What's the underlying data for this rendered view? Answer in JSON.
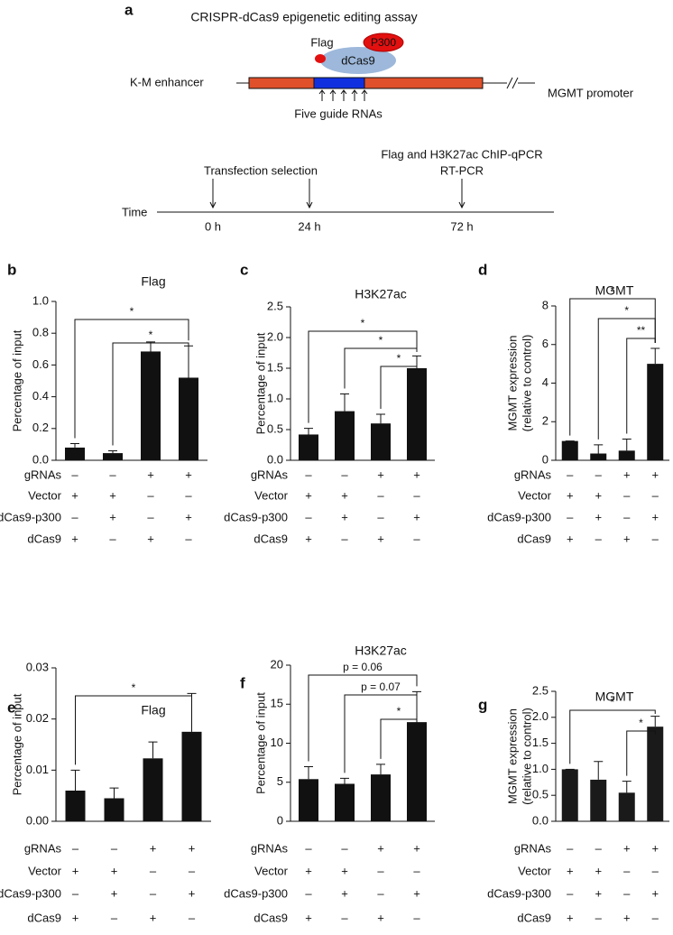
{
  "schematic": {
    "panel": "a",
    "title": "CRISPR-dCas9 epigenetic editing assay",
    "labels": {
      "flag": "Flag",
      "p300": "P300",
      "dcas9": "dCas9",
      "enhancer": "K-M enhancer",
      "promoter": "MGMT promoter",
      "guides": "Five guide RNAs"
    },
    "timeline": {
      "axis": "Time",
      "steps": [
        "Transfection selection",
        "Flag and H3K27ac ChIP-qPCR",
        "RT-PCR"
      ],
      "ticks": [
        "0 h",
        "24 h",
        "72 h"
      ]
    }
  },
  "chart_data": [
    {
      "panel": "b",
      "type": "bar",
      "title": "Flag",
      "ylabel": [
        "Percentage of input"
      ],
      "color": "#111111",
      "values": [
        0.08,
        0.045,
        0.685,
        0.52
      ],
      "errors": [
        0.025,
        0.015,
        0.06,
        0.2
      ],
      "ylim": [
        0,
        1.0
      ],
      "yticks": [
        {
          "value": 0,
          "label": "0.0"
        },
        0.2,
        0.4,
        0.6,
        0.8,
        {
          "value": 1.0,
          "label": "1.0"
        }
      ],
      "brackets": [
        {
          "label": "*"
        },
        {
          "label": "*"
        }
      ],
      "conditions": [
        {
          "name": "gRNAs",
          "signs": [
            "–",
            "–",
            "+",
            "+"
          ]
        },
        {
          "name": "Vector",
          "signs": [
            "+",
            "+",
            "–",
            "–"
          ]
        },
        {
          "name": "dCas9-p300",
          "signs": [
            "–",
            "+",
            "–",
            "+"
          ]
        },
        {
          "name": "dCas9",
          "signs": [
            "+",
            "–",
            "+",
            "–"
          ]
        }
      ]
    },
    {
      "panel": "c",
      "type": "bar",
      "title": "H3K27ac",
      "ylabel": [
        "Percentage of input"
      ],
      "color": "#111111",
      "values": [
        0.42,
        0.8,
        0.6,
        1.5
      ],
      "errors": [
        0.1,
        0.28,
        0.15,
        0.2
      ],
      "ylim": [
        0,
        2.5
      ],
      "yticks": [
        {
          "value": 0,
          "label": "0.0"
        },
        0.5,
        {
          "value": 1.0,
          "label": "1.0"
        },
        1.5,
        {
          "value": 2.0,
          "label": "2.0"
        },
        2.5
      ],
      "brackets": [
        {
          "label": "*"
        },
        {
          "label": "*"
        },
        {
          "label": "*"
        }
      ],
      "conditions": [
        {
          "name": "gRNAs",
          "signs": [
            "–",
            "–",
            "+",
            "+"
          ]
        },
        {
          "name": "Vector",
          "signs": [
            "+",
            "+",
            "–",
            "–"
          ]
        },
        {
          "name": "dCas9-p300",
          "signs": [
            "–",
            "+",
            "–",
            "+"
          ]
        },
        {
          "name": "dCas9",
          "signs": [
            "+",
            "–",
            "+",
            "–"
          ]
        }
      ]
    },
    {
      "panel": "d",
      "type": "bar",
      "title": "MGMT",
      "ylabel": [
        "MGMT expression",
        "(relative to control)"
      ],
      "color": "#111111",
      "values": [
        1.0,
        0.35,
        0.5,
        5.0
      ],
      "errors": [
        0,
        0.45,
        0.6,
        0.8
      ],
      "ylim": [
        0,
        8
      ],
      "yticks": [
        0,
        2,
        4,
        6,
        8
      ],
      "brackets": [
        {
          "label": "*"
        },
        {
          "label": "*"
        },
        {
          "label": "**"
        }
      ],
      "conditions": [
        {
          "name": "gRNAs",
          "signs": [
            "–",
            "–",
            "+",
            "+"
          ]
        },
        {
          "name": "Vector",
          "signs": [
            "+",
            "+",
            "–",
            "–"
          ]
        },
        {
          "name": "dCas9-p300",
          "signs": [
            "–",
            "+",
            "–",
            "+"
          ]
        },
        {
          "name": "dCas9",
          "signs": [
            "+",
            "–",
            "+",
            "–"
          ]
        }
      ]
    },
    {
      "panel": "e",
      "type": "bar",
      "title": "Flag",
      "ylabel": [
        "Percentage of input"
      ],
      "color": "#111111",
      "values": [
        0.006,
        0.0045,
        0.0123,
        0.0175
      ],
      "errors": [
        0.004,
        0.002,
        0.0032,
        0.0075
      ],
      "ylim": [
        0,
        0.03
      ],
      "yticks": [
        {
          "value": 0,
          "label": "0.00"
        },
        0.01,
        0.02,
        0.03
      ],
      "brackets": [
        {
          "label": "*"
        }
      ],
      "conditions": [
        {
          "name": "gRNAs",
          "signs": [
            "–",
            "–",
            "+",
            "+"
          ]
        },
        {
          "name": "Vector",
          "signs": [
            "+",
            "+",
            "–",
            "–"
          ]
        },
        {
          "name": "dCas9-p300",
          "signs": [
            "–",
            "+",
            "–",
            "+"
          ]
        },
        {
          "name": "dCas9",
          "signs": [
            "+",
            "–",
            "+",
            "–"
          ]
        }
      ]
    },
    {
      "panel": "f",
      "type": "bar",
      "title": "H3K27ac",
      "ylabel": [
        "Percentage of input"
      ],
      "color": "#111111",
      "values": [
        5.4,
        4.8,
        6.0,
        12.7
      ],
      "errors": [
        1.6,
        0.7,
        1.3,
        3.9
      ],
      "ylim": [
        0,
        20
      ],
      "yticks": [
        0,
        5,
        10,
        15,
        20
      ],
      "brackets": [
        {
          "label": "p = 0.06"
        },
        {
          "label": "p = 0.07"
        },
        {
          "label": "*"
        }
      ],
      "conditions": [
        {
          "name": "gRNAs",
          "signs": [
            "–",
            "–",
            "+",
            "+"
          ]
        },
        {
          "name": "Vector",
          "signs": [
            "+",
            "+",
            "–",
            "–"
          ]
        },
        {
          "name": "dCas9-p300",
          "signs": [
            "–",
            "+",
            "–",
            "+"
          ]
        },
        {
          "name": "dCas9",
          "signs": [
            "+",
            "–",
            "+",
            "–"
          ]
        }
      ]
    },
    {
      "panel": "g",
      "type": "bar",
      "title": "MGMT",
      "ylabel": [
        "MGMT expression",
        "(relative to control)"
      ],
      "color": "#1a1a1a",
      "values": [
        1.0,
        0.8,
        0.55,
        1.82
      ],
      "errors": [
        0,
        0.35,
        0.22,
        0.2
      ],
      "ylim": [
        0,
        2.5
      ],
      "yticks": [
        {
          "value": 0,
          "label": "0.0"
        },
        0.5,
        {
          "value": 1.0,
          "label": "1.0"
        },
        1.5,
        {
          "value": 2.0,
          "label": "2.0"
        },
        2.5
      ],
      "brackets": [
        {
          "label": "*"
        },
        {
          "label": "*"
        }
      ],
      "conditions": [
        {
          "name": "gRNAs",
          "signs": [
            "–",
            "–",
            "+",
            "+"
          ]
        },
        {
          "name": "Vector",
          "signs": [
            "+",
            "+",
            "–",
            "–"
          ]
        },
        {
          "name": "dCas9-p300",
          "signs": [
            "–",
            "+",
            "–",
            "+"
          ]
        },
        {
          "name": "dCas9",
          "signs": [
            "+",
            "–",
            "+",
            "–"
          ]
        }
      ]
    }
  ]
}
